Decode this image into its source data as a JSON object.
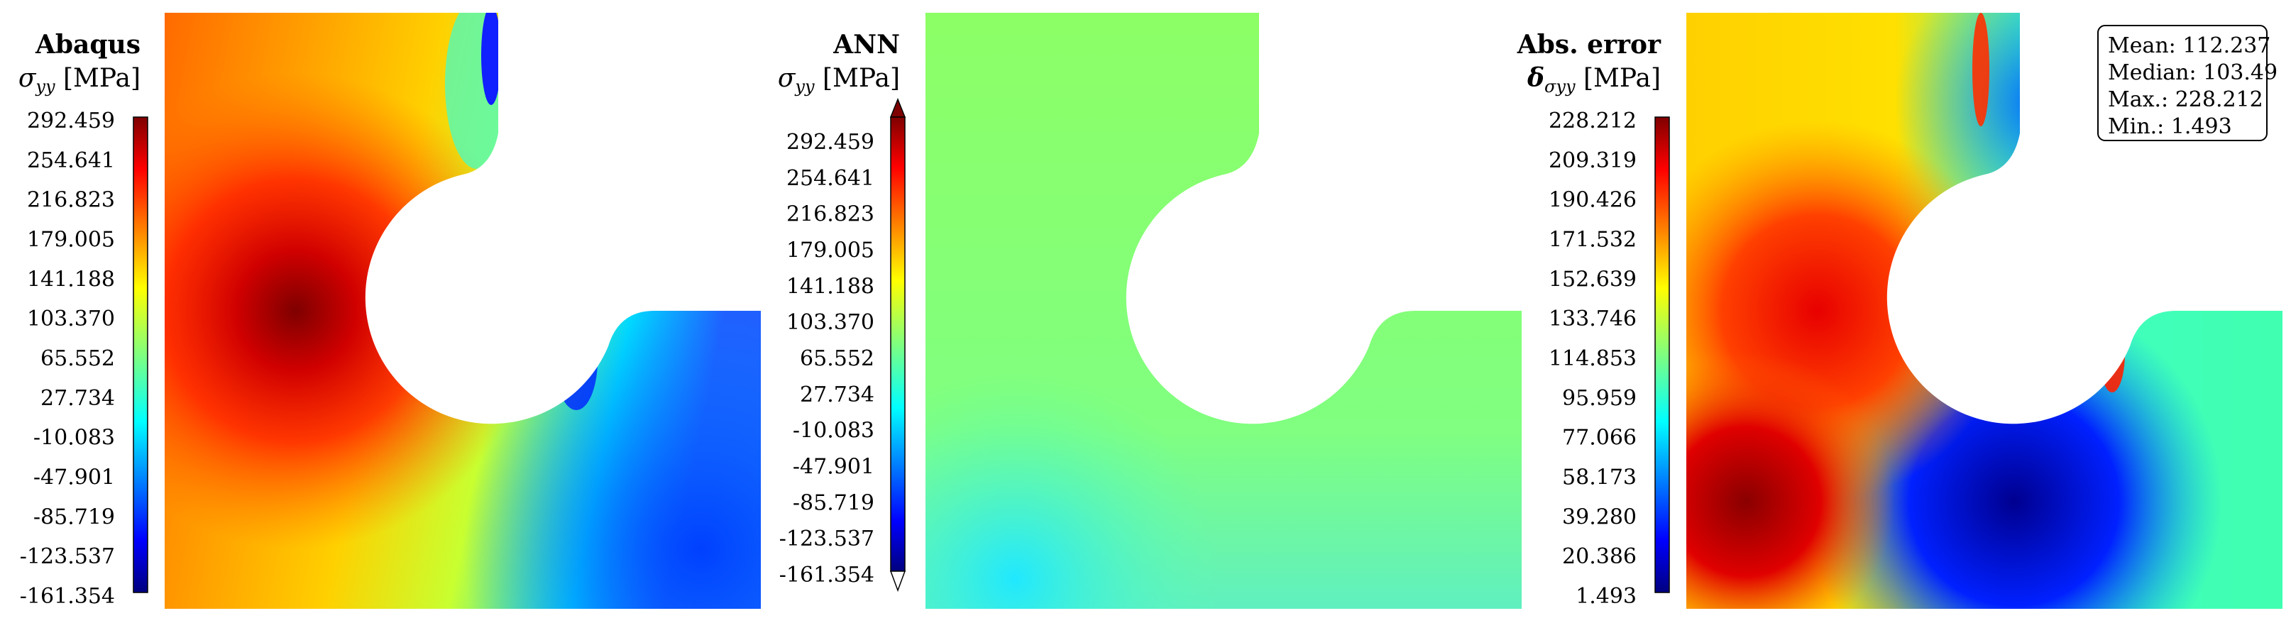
{
  "panels": [
    {
      "title": "Abaqus",
      "quantity": "σ",
      "quantity_subscript": "yy",
      "unit": "[MPa]",
      "colorbar_ticks": [
        "292.459",
        "254.641",
        "216.823",
        "179.005",
        "141.188",
        "103.370",
        "65.552",
        "27.734",
        "-10.083",
        "-47.901",
        "-85.719",
        "-123.537",
        "-161.354"
      ]
    },
    {
      "title": "ANN",
      "quantity": "σ",
      "quantity_subscript": "yy",
      "unit": "[MPa]",
      "colorbar_ticks": [
        "292.459",
        "254.641",
        "216.823",
        "179.005",
        "141.188",
        "103.370",
        "65.552",
        "27.734",
        "-10.083",
        "-47.901",
        "-85.719",
        "-123.537",
        "-161.354"
      ]
    },
    {
      "title": "Abs. error",
      "quantity": "δ",
      "quantity_subscript": "σyy",
      "unit": "[MPa]",
      "colorbar_ticks": [
        "228.212",
        "209.319",
        "190.426",
        "171.532",
        "152.639",
        "133.746",
        "114.853",
        "95.959",
        "77.066",
        "58.173",
        "39.280",
        "20.386",
        "1.493"
      ]
    }
  ],
  "stats": {
    "mean": "Mean: 112.237",
    "median": "Median: 103.49",
    "max": "Max.: 228.212",
    "min": "Min.: 1.493"
  },
  "colors": {
    "jet_dark_red": "#7f0000",
    "jet_red": "#ff0000",
    "jet_orange": "#ff9a00",
    "jet_yellow": "#ffff00",
    "jet_green": "#7fff7f",
    "jet_cyan": "#00ffff",
    "jet_blue": "#0000ff",
    "jet_dark_blue": "#00007f"
  }
}
